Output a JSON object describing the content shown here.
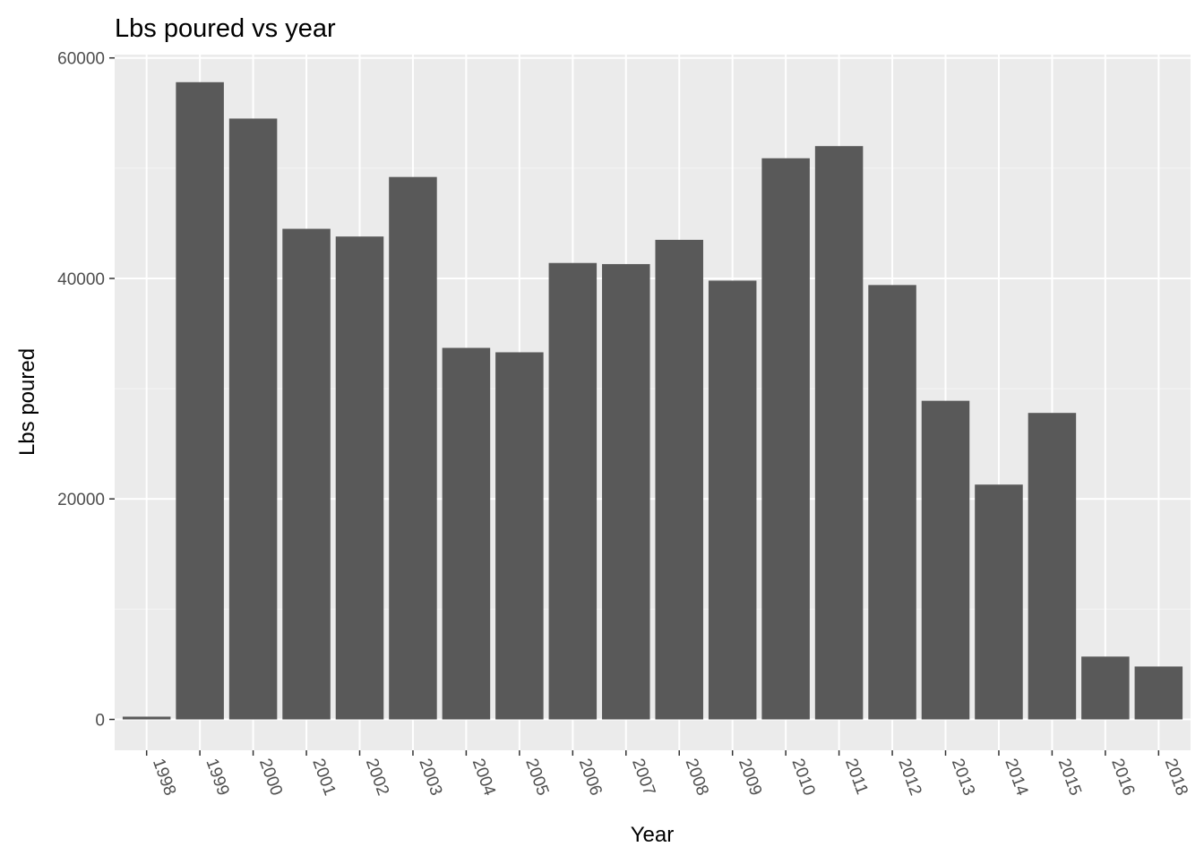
{
  "chart_data": {
    "type": "bar",
    "title": "Lbs poured vs year",
    "xlabel": "Year",
    "ylabel": "Lbs poured",
    "categories": [
      "1998",
      "1999",
      "2000",
      "2001",
      "2002",
      "2003",
      "2004",
      "2005",
      "2006",
      "2007",
      "2008",
      "2009",
      "2010",
      "2011",
      "2012",
      "2013",
      "2014",
      "2015",
      "2016",
      "2018"
    ],
    "values": [
      250,
      57800,
      54500,
      44500,
      43800,
      49200,
      33700,
      33300,
      41400,
      41300,
      43500,
      39800,
      50900,
      52000,
      39400,
      28900,
      21300,
      27800,
      5700,
      4800
    ],
    "ylim": [
      -2800,
      60300
    ],
    "yticks": [
      0,
      20000,
      40000,
      60000
    ],
    "ytick_labels": [
      "0",
      "20000",
      "40000",
      "60000"
    ],
    "grid": true,
    "legend": "none",
    "colors": {
      "bar": "#595959",
      "panel_background": "#ebebeb",
      "grid_major": "#ffffff",
      "grid_minor": "#f5f5f5"
    }
  }
}
